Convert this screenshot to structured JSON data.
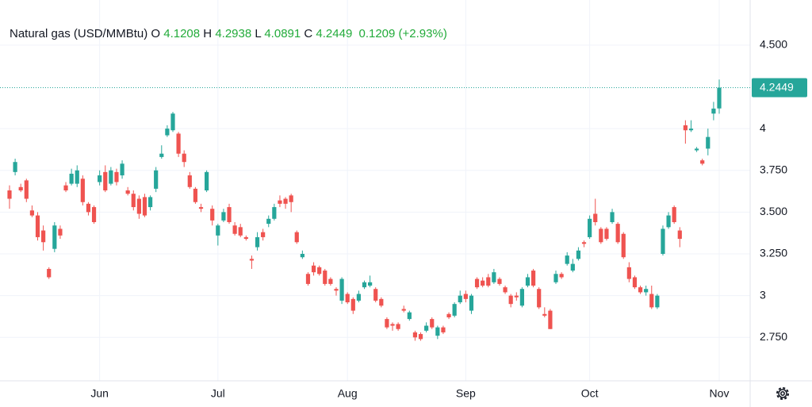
{
  "chart_data": {
    "type": "candlestick",
    "title": "Natural gas (USD/MMBtu)",
    "ohlc_labels": [
      "O",
      "H",
      "L",
      "C"
    ],
    "change": 0.1209,
    "change_percent_label": "(+2.93%)",
    "header_value_color": "#22ab3a",
    "up_color": "#26a69a",
    "down_color": "#ef5350",
    "grid": true,
    "categories": [
      null,
      null,
      null,
      null,
      null,
      null,
      null,
      null,
      null,
      null,
      null,
      null,
      null,
      null,
      null,
      null,
      "Jun",
      null,
      null,
      null,
      null,
      null,
      null,
      null,
      null,
      null,
      null,
      null,
      null,
      null,
      null,
      null,
      null,
      null,
      null,
      null,
      null,
      "Jul",
      null,
      null,
      null,
      null,
      null,
      null,
      null,
      null,
      null,
      null,
      null,
      null,
      null,
      null,
      null,
      null,
      null,
      null,
      null,
      null,
      null,
      null,
      "Aug",
      null,
      null,
      null,
      null,
      null,
      null,
      null,
      null,
      null,
      null,
      null,
      null,
      null,
      null,
      null,
      null,
      null,
      null,
      null,
      null,
      "Sep",
      null,
      null,
      null,
      null,
      null,
      null,
      null,
      null,
      null,
      null,
      null,
      null,
      null,
      null,
      null,
      null,
      null,
      null,
      null,
      null,
      null,
      "Oct",
      null,
      null,
      null,
      null,
      null,
      null,
      null,
      null,
      null,
      null,
      null,
      null,
      null,
      null,
      null,
      null,
      null,
      null,
      null,
      null,
      null,
      null,
      "Nov"
    ],
    "open": [
      3.63,
      3.74,
      3.65,
      3.69,
      3.51,
      3.48,
      3.39,
      3.16,
      3.28,
      3.4,
      3.66,
      3.67,
      3.67,
      3.7,
      3.55,
      3.53,
      3.68,
      3.74,
      3.67,
      3.74,
      3.72,
      3.63,
      3.61,
      3.58,
      3.59,
      3.53,
      3.64,
      3.83,
      3.96,
      3.99,
      3.97,
      3.85,
      3.72,
      3.64,
      3.53,
      3.63,
      3.52,
      3.36,
      3.45,
      3.53,
      3.42,
      3.41,
      3.35,
      3.22,
      3.29,
      3.38,
      3.43,
      3.46,
      3.57,
      3.58,
      3.6,
      3.38,
      3.23,
      3.13,
      3.18,
      3.17,
      3.15,
      3.1,
      3.04,
      2.97,
      3.01,
      2.98,
      2.97,
      3.05,
      3.06,
      3.04,
      2.98,
      2.86,
      2.83,
      2.83,
      2.92,
      2.86,
      2.78,
      2.77,
      2.79,
      2.86,
      2.76,
      2.81,
      2.89,
      2.88,
      2.96,
      3.01,
      2.91,
      3.1,
      3.09,
      3.11,
      3.08,
      3.1,
      3.05,
      3.0,
      3.0,
      2.94,
      3.06,
      3.15,
      3.04,
      2.89,
      2.91,
      3.08,
      3.13,
      3.19,
      3.15,
      3.22,
      3.32,
      3.35,
      3.49,
      3.4,
      3.4,
      3.44,
      3.43,
      3.37,
      3.17,
      3.11,
      3.05,
      3.02,
      3.01,
      2.93,
      3.25,
      3.41,
      3.53,
      3.39,
      4.02,
      3.99,
      3.87,
      3.81,
      3.88,
      4.09,
      4.1208
    ],
    "high": [
      3.66,
      3.82,
      3.67,
      3.7,
      3.54,
      3.5,
      3.42,
      3.17,
      3.44,
      3.42,
      3.68,
      3.76,
      3.78,
      3.72,
      3.56,
      3.54,
      3.75,
      3.78,
      3.77,
      3.76,
      3.81,
      3.65,
      3.63,
      3.6,
      3.61,
      3.6,
      3.77,
      3.9,
      4.02,
      4.1,
      3.98,
      3.87,
      3.74,
      3.65,
      3.55,
      3.75,
      3.54,
      3.43,
      3.52,
      3.55,
      3.44,
      3.43,
      3.36,
      3.24,
      3.38,
      3.4,
      3.48,
      3.55,
      3.6,
      3.59,
      3.61,
      3.39,
      3.27,
      3.14,
      3.2,
      3.18,
      3.16,
      3.11,
      3.05,
      3.11,
      3.02,
      2.99,
      3.03,
      3.09,
      3.12,
      3.05,
      2.99,
      2.87,
      2.84,
      2.84,
      2.94,
      2.91,
      2.79,
      2.78,
      2.84,
      2.87,
      2.82,
      2.82,
      2.9,
      2.96,
      3.03,
      3.03,
      3.01,
      3.11,
      3.11,
      3.13,
      3.16,
      3.11,
      3.06,
      3.01,
      3.02,
      3.05,
      3.13,
      3.16,
      3.05,
      2.93,
      2.92,
      3.15,
      3.14,
      3.26,
      3.22,
      3.29,
      3.33,
      3.48,
      3.58,
      3.41,
      3.41,
      3.52,
      3.44,
      3.38,
      3.2,
      3.12,
      3.06,
      3.06,
      3.06,
      3.01,
      3.42,
      3.5,
      3.54,
      3.41,
      4.05,
      4.05,
      3.89,
      3.82,
      4.0,
      4.16,
      4.2938
    ],
    "low": [
      3.52,
      3.72,
      3.62,
      3.56,
      3.47,
      3.33,
      3.27,
      3.1,
      3.26,
      3.34,
      3.62,
      3.66,
      3.65,
      3.54,
      3.48,
      3.43,
      3.66,
      3.62,
      3.66,
      3.66,
      3.7,
      3.6,
      3.51,
      3.46,
      3.47,
      3.51,
      3.62,
      3.82,
      3.95,
      3.98,
      3.83,
      3.77,
      3.64,
      3.55,
      3.5,
      3.62,
      3.42,
      3.3,
      3.44,
      3.43,
      3.36,
      3.35,
      3.33,
      3.16,
      3.27,
      3.33,
      3.41,
      3.45,
      3.53,
      3.52,
      3.5,
      3.31,
      3.22,
      3.06,
      3.12,
      3.12,
      3.06,
      3.06,
      3.0,
      2.95,
      2.95,
      2.89,
      2.96,
      3.04,
      3.05,
      2.96,
      2.93,
      2.8,
      2.79,
      2.79,
      2.9,
      2.85,
      2.73,
      2.73,
      2.78,
      2.8,
      2.74,
      2.77,
      2.86,
      2.87,
      2.95,
      2.96,
      2.89,
      3.04,
      3.05,
      3.05,
      3.07,
      3.06,
      3.01,
      2.93,
      2.97,
      2.93,
      3.05,
      3.05,
      2.92,
      2.87,
      2.8,
      3.07,
      3.1,
      3.18,
      3.14,
      3.21,
      3.29,
      3.34,
      3.42,
      3.31,
      3.33,
      3.43,
      3.31,
      3.22,
      3.08,
      3.04,
      3.01,
      3.0,
      2.92,
      2.92,
      3.24,
      3.4,
      3.43,
      3.29,
      3.91,
      3.98,
      3.86,
      3.78,
      3.84,
      4.05,
      4.0891
    ],
    "close": [
      3.58,
      3.8,
      3.63,
      3.58,
      3.48,
      3.35,
      3.32,
      3.11,
      3.42,
      3.36,
      3.63,
      3.73,
      3.75,
      3.56,
      3.5,
      3.44,
      3.72,
      3.63,
      3.75,
      3.68,
      3.79,
      3.61,
      3.53,
      3.49,
      3.48,
      3.59,
      3.75,
      3.85,
      4.0,
      4.09,
      3.85,
      3.8,
      3.65,
      3.56,
      3.52,
      3.74,
      3.45,
      3.42,
      3.5,
      3.44,
      3.37,
      3.36,
      3.34,
      3.21,
      3.35,
      3.35,
      3.46,
      3.53,
      3.55,
      3.55,
      3.56,
      3.32,
      3.25,
      3.07,
      3.14,
      3.13,
      3.07,
      3.07,
      3.03,
      3.1,
      2.96,
      2.91,
      3.01,
      3.08,
      3.08,
      2.97,
      2.94,
      2.81,
      2.82,
      2.8,
      2.91,
      2.9,
      2.75,
      2.74,
      2.82,
      2.81,
      2.81,
      2.78,
      2.87,
      2.95,
      3.0,
      2.98,
      3.0,
      3.05,
      3.06,
      3.06,
      3.14,
      3.07,
      3.02,
      2.95,
      2.99,
      3.04,
      3.11,
      3.06,
      2.93,
      2.88,
      2.8,
      3.13,
      3.11,
      3.24,
      3.19,
      3.27,
      3.31,
      3.46,
      3.44,
      3.32,
      3.34,
      3.5,
      3.32,
      3.23,
      3.1,
      3.05,
      3.02,
      3.04,
      2.93,
      3.0,
      3.4,
      3.48,
      3.44,
      3.34,
      3.99,
      4.0,
      3.88,
      3.79,
      3.95,
      4.12,
      4.2449
    ],
    "ylim": [
      2.49,
      4.77
    ],
    "yticks": [
      {
        "value": 2.75,
        "label": "2.750"
      },
      3,
      {
        "value": 3.25,
        "label": "3.250"
      },
      {
        "value": 3.5,
        "label": "3.500"
      },
      {
        "value": 3.75,
        "label": "3.750"
      },
      4,
      {
        "value": 4.5,
        "label": "4.500"
      }
    ]
  }
}
